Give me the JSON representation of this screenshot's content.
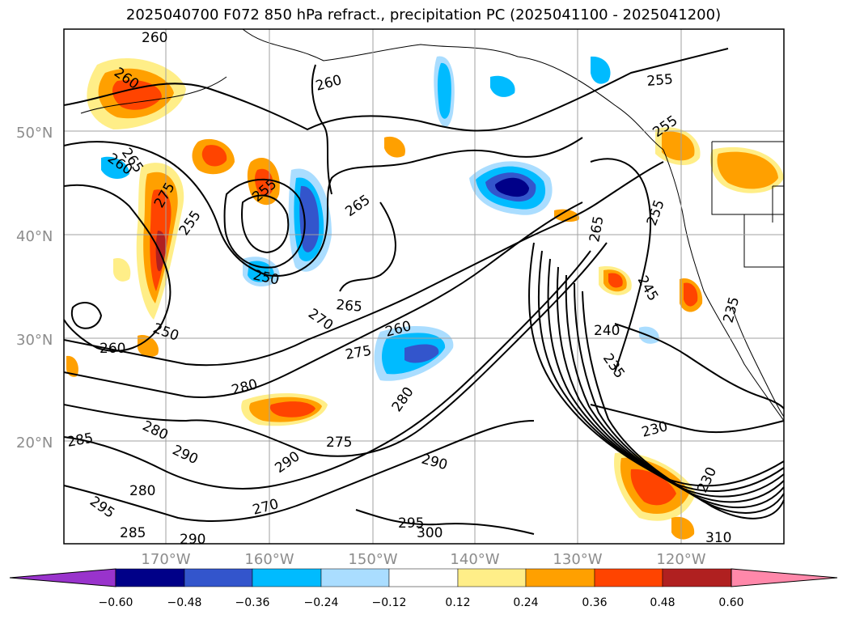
{
  "title": "2025040700 F072 850 hPa refract., precipitation PC (2025041100 - 2025041200)",
  "map": {
    "latitudes": [
      {
        "value": 50,
        "label": "50°N"
      },
      {
        "value": 40,
        "label": "40°N"
      },
      {
        "value": 30,
        "label": "30°N"
      },
      {
        "value": 20,
        "label": "20°N"
      }
    ],
    "longitudes": [
      {
        "value": -170,
        "label": "170°W"
      },
      {
        "value": -160,
        "label": "160°W"
      },
      {
        "value": -150,
        "label": "150°W"
      },
      {
        "value": -140,
        "label": "140°W"
      },
      {
        "value": -130,
        "label": "130°W"
      },
      {
        "value": -120,
        "label": "120°W"
      }
    ],
    "contour_labels": [
      "260",
      "260",
      "260",
      "255",
      "255",
      "265",
      "260",
      "265",
      "275",
      "255",
      "255",
      "250",
      "265",
      "255",
      "250",
      "260",
      "270",
      "275",
      "265",
      "260",
      "240",
      "235",
      "245",
      "235",
      "230",
      "280",
      "280",
      "285",
      "290",
      "275",
      "290",
      "280",
      "270",
      "290",
      "295",
      "300",
      "285",
      "290",
      "295",
      "230",
      "280",
      "310"
    ],
    "colors": {
      "ocean": "#ffffff",
      "contour": "#000000",
      "grid": "#a0a0a0"
    }
  },
  "colorbar": {
    "ticks": [
      "−0.60",
      "−0.48",
      "−0.36",
      "−0.24",
      "−0.12",
      "0.12",
      "0.24",
      "0.36",
      "0.48",
      "0.60"
    ],
    "colors": [
      "#9933cc",
      "#000088",
      "#3355cc",
      "#00bbff",
      "#aaddff",
      "#ffffff",
      "#ffee88",
      "#ffa000",
      "#ff4400",
      "#b02020",
      "#ff88aa"
    ]
  }
}
